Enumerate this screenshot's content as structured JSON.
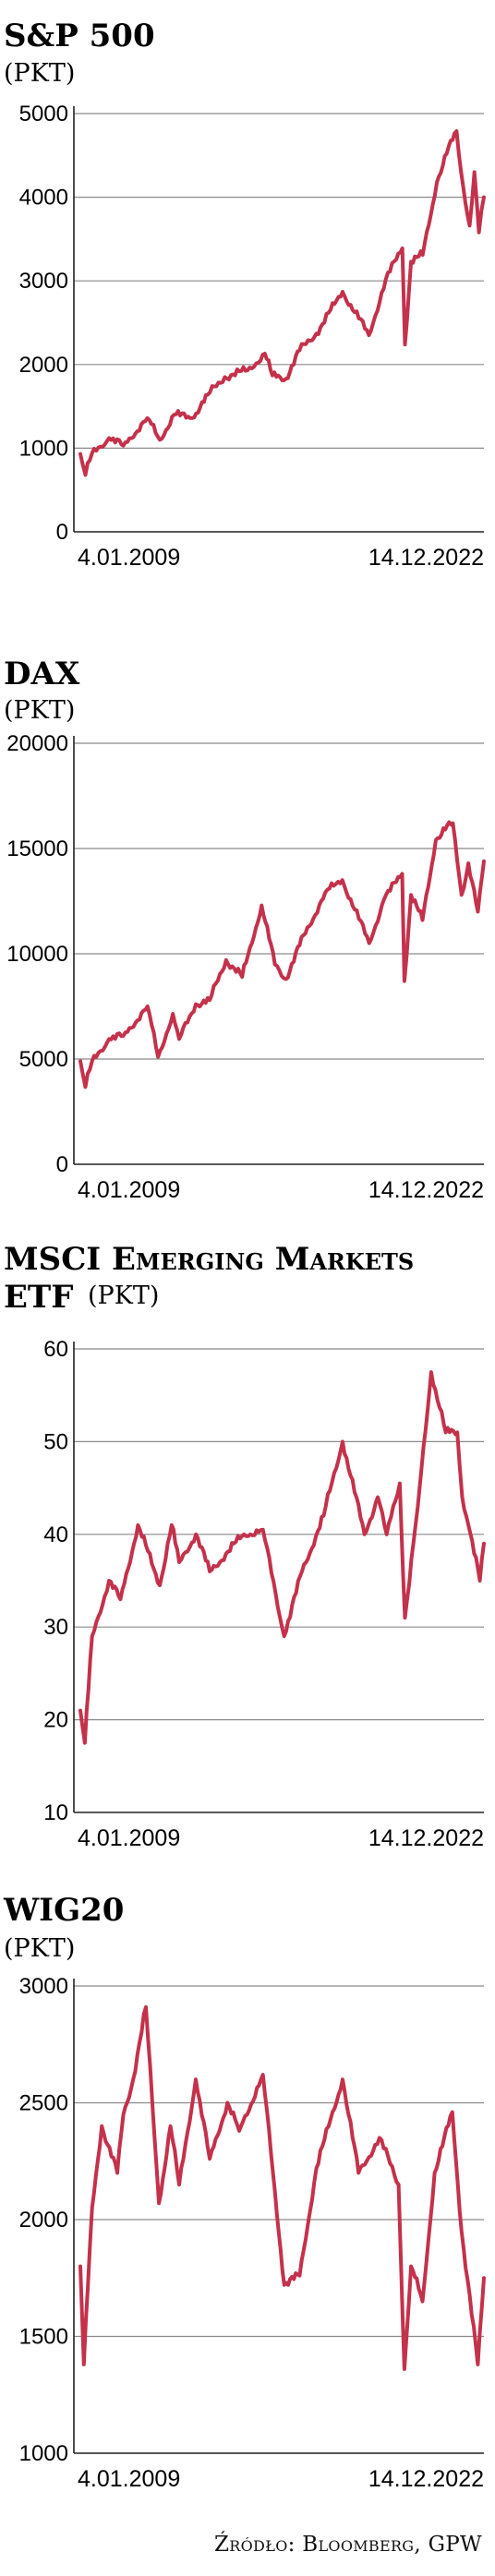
{
  "source": "Źródło: Bloomberg, GPW",
  "line_color": "#c4314b",
  "chart_data": [
    {
      "type": "line",
      "title": "S&P 500",
      "unit": "(PKT)",
      "x": [
        "2009-01-04",
        "2009-03-09",
        "2009-06-01",
        "2010-01-01",
        "2010-07-01",
        "2011-04-29",
        "2011-10-03",
        "2012-04-01",
        "2012-11-15",
        "2013-06-01",
        "2013-12-31",
        "2014-10-15",
        "2015-05-20",
        "2015-08-25",
        "2016-02-11",
        "2016-08-01",
        "2017-03-01",
        "2018-01-26",
        "2018-12-24",
        "2019-07-26",
        "2020-02-19",
        "2020-03-23",
        "2020-06-08",
        "2020-11-01",
        "2021-04-30",
        "2021-08-31",
        "2022-01-03",
        "2022-03-01",
        "2022-06-16",
        "2022-08-16",
        "2022-10-12",
        "2022-12-14"
      ],
      "series": [
        {
          "values": [
            930,
            680,
            940,
            1120,
            1030,
            1360,
            1100,
            1400,
            1360,
            1640,
            1850,
            1930,
            2130,
            1870,
            1830,
            2170,
            2370,
            2870,
            2350,
            3020,
            3390,
            2240,
            3230,
            3310,
            4180,
            4520,
            4790,
            4300,
            3660,
            4300,
            3580,
            4000
          ]
        }
      ],
      "ylim": [
        0,
        5000
      ],
      "yticks": [
        0,
        1000,
        2000,
        3000,
        4000,
        5000
      ],
      "xlabels": [
        "4.01.2009",
        "14.12.2022"
      ]
    },
    {
      "type": "line",
      "title": "DAX",
      "unit": "(PKT)",
      "x": [
        "2009-01-04",
        "2009-03-09",
        "2009-06-01",
        "2010-01-01",
        "2010-07-01",
        "2011-05-02",
        "2011-09-12",
        "2012-03-16",
        "2012-06-04",
        "2012-12-31",
        "2013-06-24",
        "2014-01-17",
        "2014-08-08",
        "2015-04-10",
        "2015-09-24",
        "2016-02-11",
        "2016-08-01",
        "2017-06-20",
        "2018-01-23",
        "2018-12-27",
        "2019-07-04",
        "2020-02-17",
        "2020-03-16",
        "2020-06-08",
        "2020-10-30",
        "2021-04-16",
        "2021-08-13",
        "2021-11-18",
        "2022-03-07",
        "2022-06-01",
        "2022-09-29",
        "2022-12-14"
      ],
      "series": [
        {
          "values": [
            4900,
            3670,
            4900,
            5950,
            6100,
            7500,
            5100,
            7150,
            5950,
            7600,
            7800,
            9700,
            8900,
            12300,
            9500,
            8800,
            10400,
            12900,
            13500,
            10500,
            12600,
            13800,
            8700,
            12800,
            11600,
            15400,
            15900,
            16200,
            12800,
            14300,
            12000,
            14400
          ]
        }
      ],
      "ylim": [
        0,
        20000
      ],
      "yticks": [
        0,
        5000,
        10000,
        15000,
        20000
      ],
      "xlabels": [
        "4.01.2009",
        "14.12.2022"
      ]
    },
    {
      "type": "line",
      "title": "MSCI Emerging Markets ETF",
      "unit": "(PKT)",
      "x": [
        "2009-01-04",
        "2009-03-02",
        "2009-06-01",
        "2010-01-01",
        "2010-05-25",
        "2011-01-01",
        "2011-10-03",
        "2012-03-01",
        "2012-06-04",
        "2013-01-02",
        "2013-06-24",
        "2014-09-01",
        "2015-04-27",
        "2016-01-20",
        "2016-09-01",
        "2017-06-01",
        "2018-01-26",
        "2018-10-29",
        "2019-04-15",
        "2019-08-05",
        "2020-01-17",
        "2020-03-23",
        "2020-09-01",
        "2021-02-17",
        "2021-08-20",
        "2022-01-12",
        "2022-03-15",
        "2022-06-01",
        "2022-10-24",
        "2022-12-14"
      ],
      "series": [
        {
          "values": [
            21,
            17.5,
            29,
            35,
            33,
            41,
            34.5,
            41,
            37,
            40,
            36,
            40,
            40.5,
            29,
            36,
            42,
            50,
            40,
            44,
            40,
            45.5,
            31,
            43,
            57.5,
            51,
            51,
            44,
            41,
            35,
            39
          ]
        }
      ],
      "ylim": [
        10,
        60
      ],
      "yticks": [
        10,
        20,
        30,
        40,
        50,
        60
      ],
      "xlabels": [
        "4.01.2009",
        "14.12.2022"
      ]
    },
    {
      "type": "line",
      "title": "WIG20",
      "unit": "(PKT)",
      "x": [
        "2009-01-04",
        "2009-02-17",
        "2009-06-01",
        "2009-10-01",
        "2010-04-15",
        "2010-07-01",
        "2010-11-01",
        "2011-04-11",
        "2011-09-23",
        "2012-02-15",
        "2012-06-04",
        "2012-12-31",
        "2013-06-24",
        "2014-02-03",
        "2014-07-01",
        "2015-04-27",
        "2015-09-01",
        "2016-01-21",
        "2016-08-01",
        "2017-03-01",
        "2018-01-26",
        "2018-08-15",
        "2019-05-06",
        "2020-01-02",
        "2020-03-16",
        "2020-06-08",
        "2020-10-30",
        "2021-04-01",
        "2021-11-10",
        "2022-03-07",
        "2022-09-28",
        "2022-12-14"
      ],
      "series": [
        {
          "values": [
            1800,
            1380,
            2050,
            2400,
            2200,
            2450,
            2600,
            2910,
            2070,
            2400,
            2150,
            2600,
            2260,
            2500,
            2380,
            2620,
            2200,
            1720,
            1760,
            2220,
            2600,
            2200,
            2350,
            2150,
            1360,
            1800,
            1650,
            2200,
            2460,
            1950,
            1380,
            1750
          ]
        }
      ],
      "ylim": [
        1000,
        3000
      ],
      "yticks": [
        1000,
        1500,
        2000,
        2500,
        3000
      ],
      "xlabels": [
        "4.01.2009",
        "14.12.2022"
      ]
    }
  ]
}
